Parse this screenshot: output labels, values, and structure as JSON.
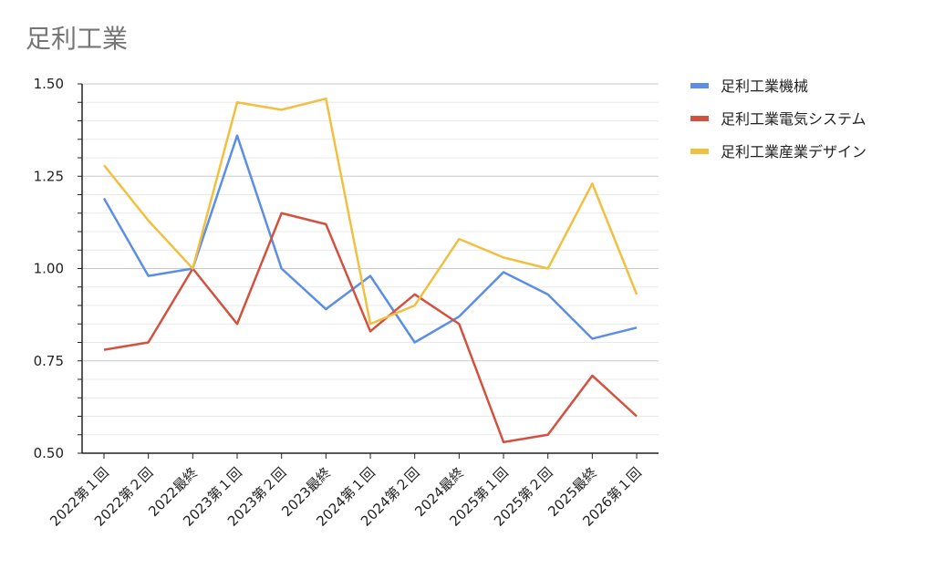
{
  "chart_data": {
    "type": "line",
    "title": "足利工業",
    "xlabel": "",
    "ylabel": "",
    "ylim": [
      0.5,
      1.5
    ],
    "yticks": [
      "0.50",
      "0.75",
      "1.00",
      "1.25",
      "1.50"
    ],
    "categories": [
      "2022第１回",
      "2022第２回",
      "2022最終",
      "2023第１回",
      "2023第２回",
      "2023最終",
      "2024第１回",
      "2024第２回",
      "2024最終",
      "2025第１回",
      "2025第２回",
      "2025最終",
      "2026第１回"
    ],
    "legend_position": "right",
    "grid": true,
    "series": [
      {
        "name": "足利工業機械",
        "color": "#5b8ee6",
        "values": [
          1.19,
          0.98,
          1.0,
          1.36,
          1.0,
          0.89,
          0.98,
          0.8,
          0.87,
          0.99,
          0.93,
          0.81,
          0.84
        ]
      },
      {
        "name": "足利工業電気システム",
        "color": "#d2513f",
        "values": [
          0.78,
          0.8,
          1.0,
          0.85,
          1.15,
          1.12,
          0.83,
          0.93,
          0.85,
          0.53,
          0.55,
          0.71,
          0.6
        ]
      },
      {
        "name": "足利工業産業デザイン",
        "color": "#f1c040",
        "values": [
          1.28,
          1.13,
          1.0,
          1.45,
          1.43,
          1.46,
          0.85,
          0.9,
          1.08,
          1.03,
          1.0,
          1.23,
          0.93
        ]
      }
    ]
  }
}
